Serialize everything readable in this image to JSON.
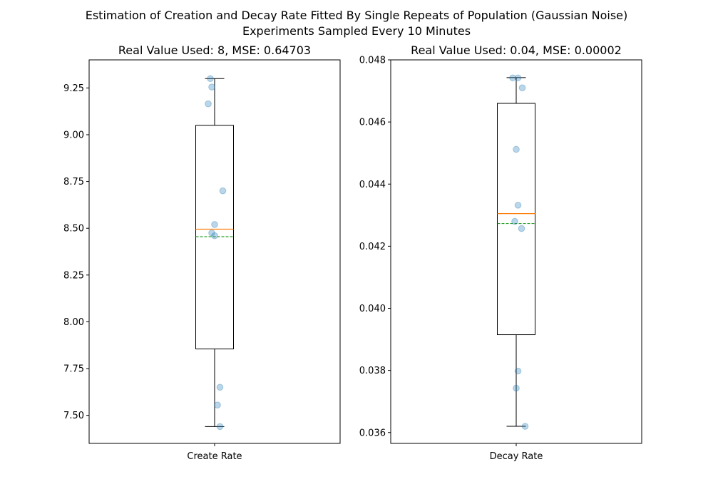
{
  "figure": {
    "title_line1": "Estimation of Creation and Decay Rate Fitted By Single Repeats of Population (Gaussian Noise)",
    "title_line2": "Experiments Sampled Every 10 Minutes"
  },
  "chart_data": [
    {
      "type": "box",
      "title": "Real Value Used: 8, MSE: 0.64703",
      "category": "Create Rate",
      "ylim": [
        7.35,
        9.4
      ],
      "yticks": [
        7.5,
        7.75,
        8.0,
        8.25,
        8.5,
        8.75,
        9.0,
        9.25
      ],
      "tick_decimals": 2,
      "box": {
        "whisker_low": 7.44,
        "q1": 7.855,
        "median": 8.495,
        "mean": 8.455,
        "q3": 9.05,
        "whisker_high": 9.3
      },
      "points": [
        {
          "jitter": -0.12,
          "y": 9.3
        },
        {
          "jitter": -0.08,
          "y": 9.255
        },
        {
          "jitter": -0.18,
          "y": 9.165
        },
        {
          "jitter": 0.23,
          "y": 8.7
        },
        {
          "jitter": 0.0,
          "y": 8.52
        },
        {
          "jitter": -0.08,
          "y": 8.475
        },
        {
          "jitter": 0.0,
          "y": 8.46
        },
        {
          "jitter": 0.15,
          "y": 7.65
        },
        {
          "jitter": 0.08,
          "y": 7.555
        },
        {
          "jitter": 0.15,
          "y": 7.44
        }
      ],
      "grid": false,
      "colors": {
        "median": "#ff7f0e",
        "mean": "#2ca02c",
        "points": "#1f77b4",
        "box": "#000000"
      }
    },
    {
      "type": "box",
      "title": "Real Value Used: 0.04, MSE: 0.00002",
      "category": "Decay Rate",
      "ylim": [
        0.03565,
        0.048
      ],
      "yticks": [
        0.036,
        0.038,
        0.04,
        0.042,
        0.044,
        0.046,
        0.048
      ],
      "tick_decimals": 3,
      "box": {
        "whisker_low": 0.0362,
        "q1": 0.03915,
        "median": 0.04305,
        "mean": 0.04273,
        "q3": 0.0466,
        "whisker_high": 0.04743
      },
      "points": [
        {
          "jitter": -0.1,
          "y": 0.04742
        },
        {
          "jitter": 0.05,
          "y": 0.04742
        },
        {
          "jitter": 0.17,
          "y": 0.0471
        },
        {
          "jitter": 0.0,
          "y": 0.04512
        },
        {
          "jitter": 0.05,
          "y": 0.04332
        },
        {
          "jitter": -0.04,
          "y": 0.0428
        },
        {
          "jitter": 0.15,
          "y": 0.04257
        },
        {
          "jitter": 0.05,
          "y": 0.03798
        },
        {
          "jitter": 0.0,
          "y": 0.03743
        },
        {
          "jitter": 0.25,
          "y": 0.0362
        }
      ],
      "grid": false,
      "colors": {
        "median": "#ff7f0e",
        "mean": "#2ca02c",
        "points": "#1f77b4",
        "box": "#000000"
      }
    }
  ]
}
